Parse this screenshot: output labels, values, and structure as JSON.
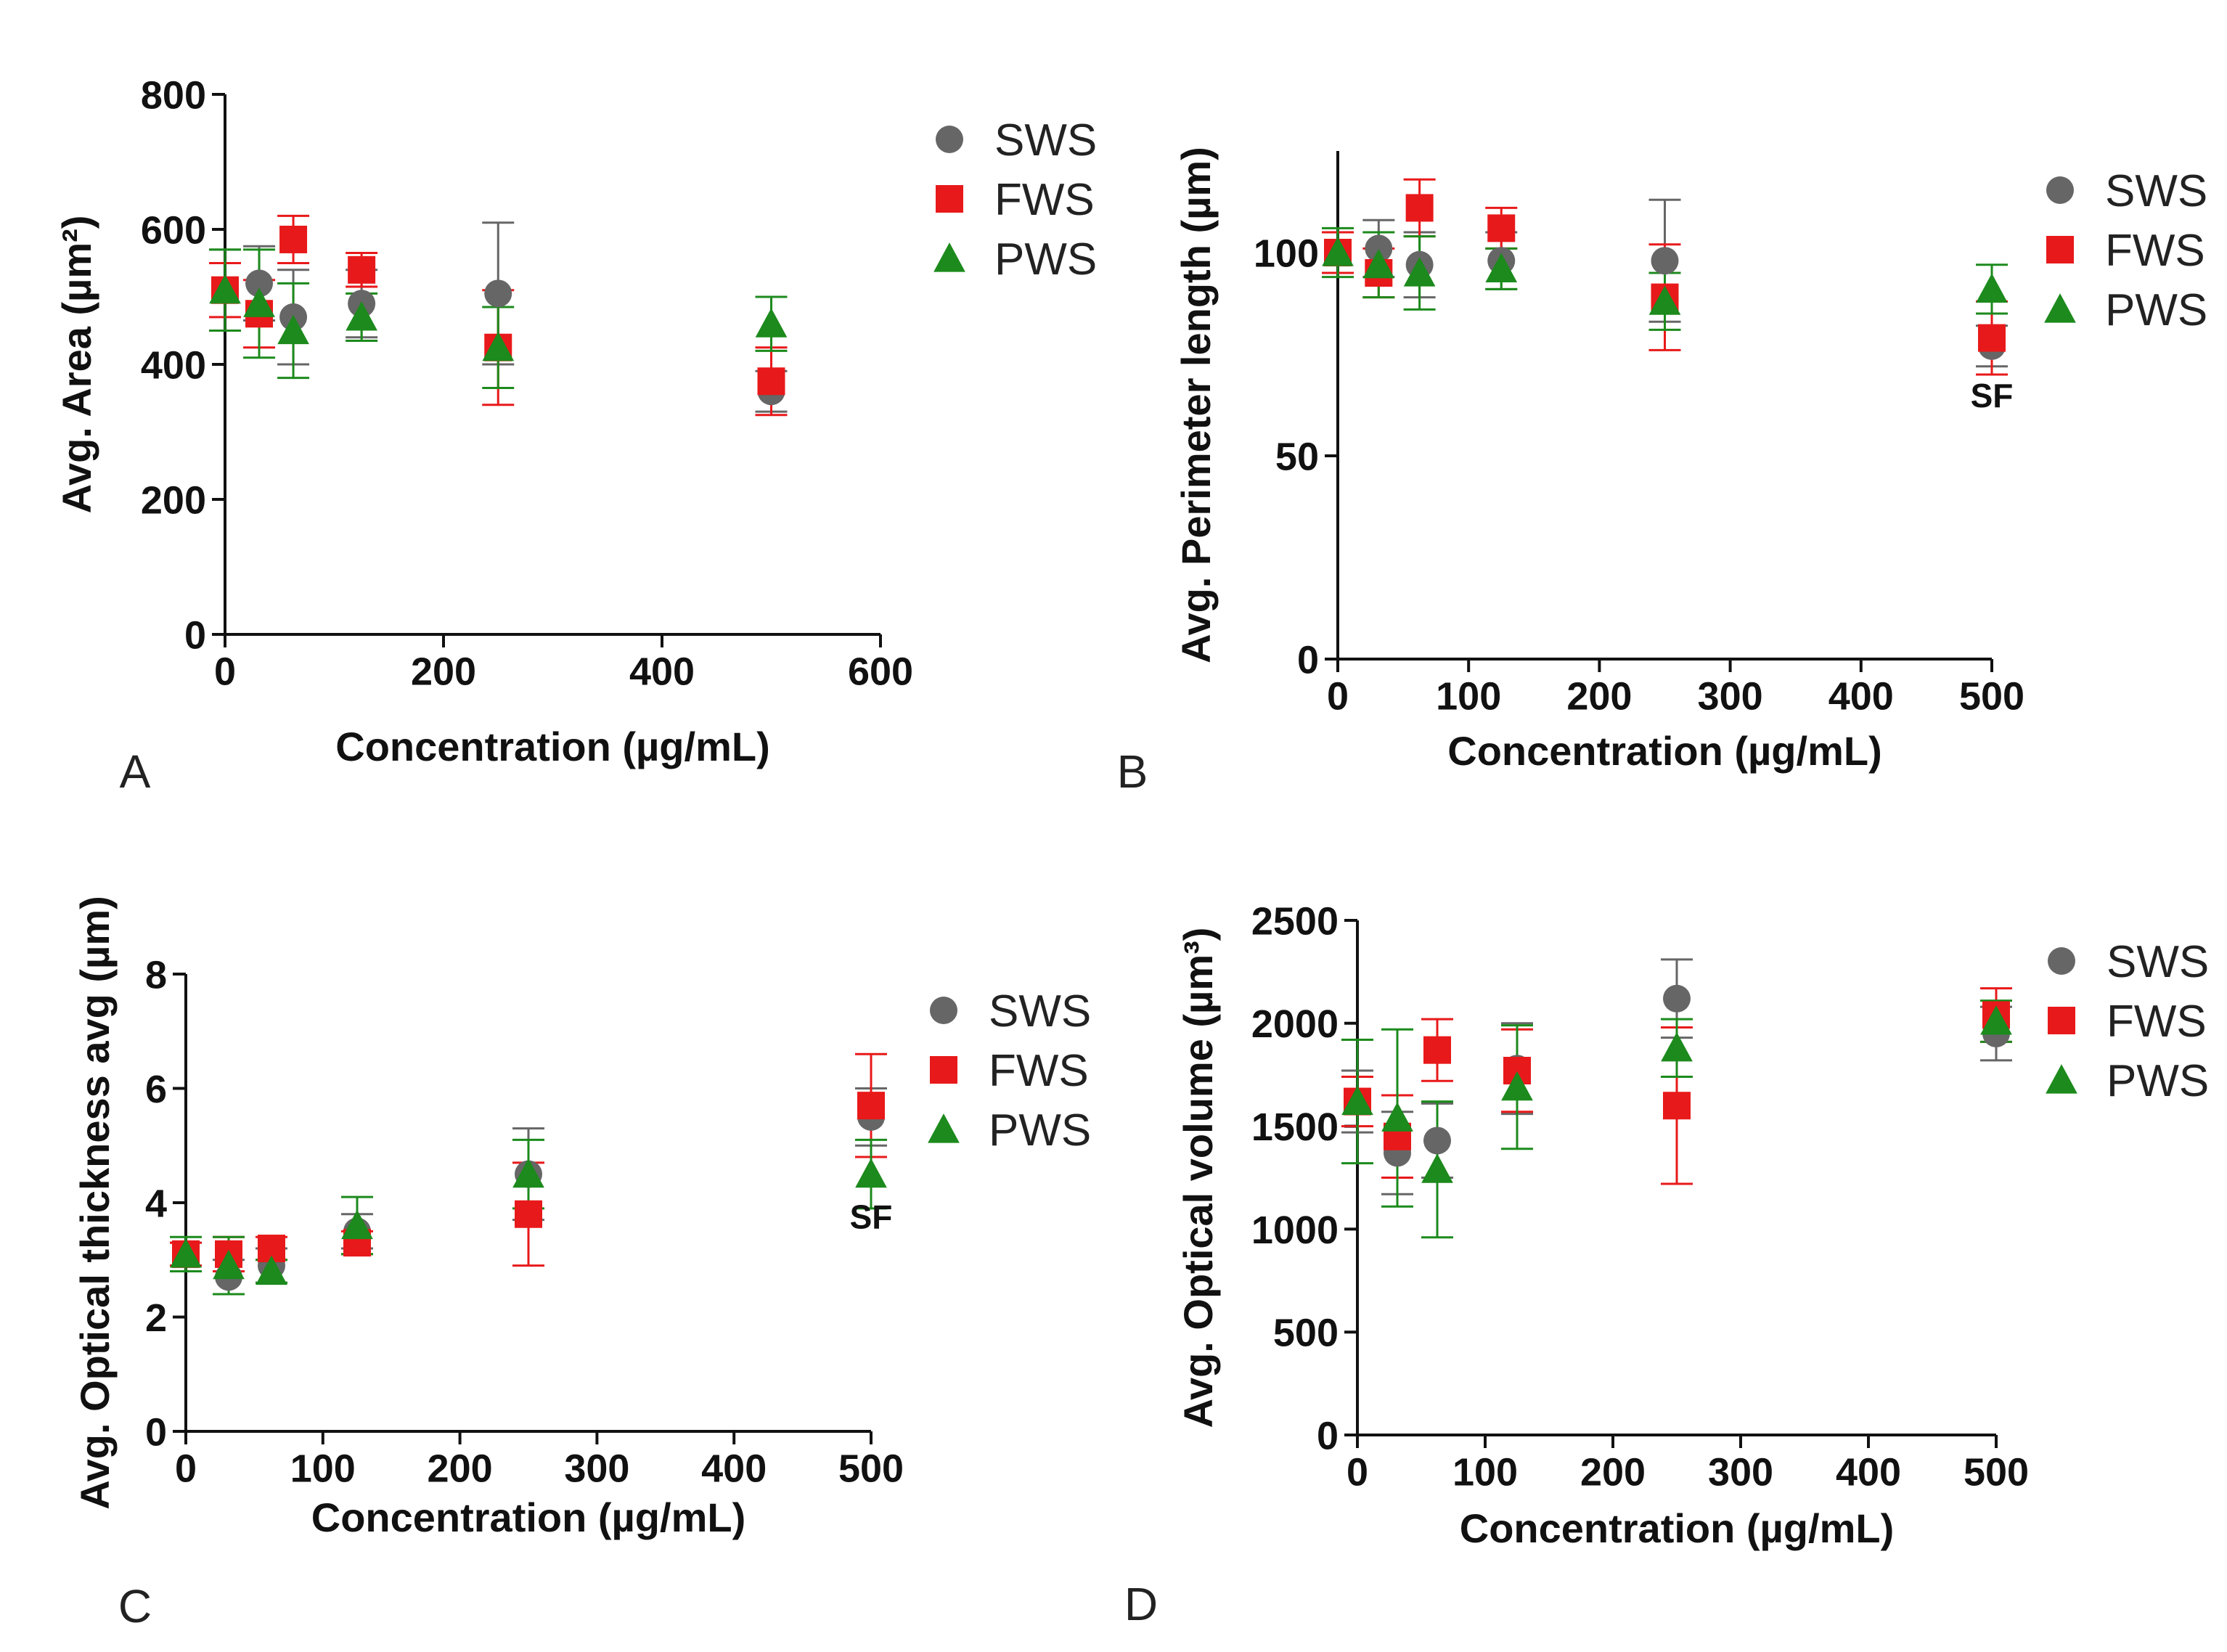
{
  "colors": {
    "SWS": "#666666",
    "FWS": "#e8191a",
    "PWS": "#1c8a1c"
  },
  "chart_data": [
    {
      "type": "scatter",
      "panel": "A",
      "xlabel": "Concentration (µg/mL)",
      "ylabel": "Avg. Area (µm²)",
      "xlim": [
        0,
        600
      ],
      "ylim": [
        0,
        800
      ],
      "xticks": [
        0,
        200,
        400,
        600
      ],
      "yticks": [
        0,
        200,
        400,
        600,
        800
      ],
      "legend": [
        "SWS",
        "FWS",
        "PWS"
      ],
      "annotations": [],
      "series": [
        {
          "name": "SWS",
          "marker": "circle",
          "x": [
            0,
            31.25,
            62.5,
            125,
            250,
            500
          ],
          "y": [
            510,
            520,
            470,
            490,
            505,
            360
          ],
          "err": [
            60,
            55,
            70,
            50,
            105,
            30
          ]
        },
        {
          "name": "FWS",
          "marker": "square",
          "x": [
            0,
            31.25,
            62.5,
            125,
            250,
            500
          ],
          "y": [
            510,
            475,
            585,
            540,
            425,
            375
          ],
          "err": [
            40,
            50,
            35,
            25,
            85,
            50
          ]
        },
        {
          "name": "PWS",
          "marker": "triangle",
          "x": [
            0,
            31.25,
            62.5,
            125,
            250,
            500
          ],
          "y": [
            510,
            490,
            450,
            470,
            425,
            460
          ],
          "err": [
            60,
            80,
            70,
            35,
            60,
            40
          ]
        }
      ]
    },
    {
      "type": "scatter",
      "panel": "B",
      "xlabel": "Concentration (µg/mL)",
      "ylabel": "Avg. Perimeter length (µm)",
      "xlim": [
        0,
        500
      ],
      "ylim": [
        0,
        125
      ],
      "xticks": [
        0,
        100,
        200,
        300,
        400,
        500
      ],
      "yticks": [
        0,
        50,
        100
      ],
      "legend": [
        "SWS",
        "FWS",
        "PWS"
      ],
      "annotations": [
        {
          "text": "SF",
          "x": 500,
          "y": 62
        }
      ],
      "series": [
        {
          "name": "SWS",
          "marker": "circle",
          "x": [
            0,
            31.25,
            62.5,
            125,
            250,
            500
          ],
          "y": [
            100,
            101,
            97,
            98,
            98,
            77
          ],
          "err": [
            5,
            7,
            8,
            7,
            15,
            5
          ]
        },
        {
          "name": "FWS",
          "marker": "square",
          "x": [
            0,
            31.25,
            62.5,
            125,
            250,
            500
          ],
          "y": [
            100,
            95,
            111,
            106,
            89,
            79
          ],
          "err": [
            5,
            6,
            7,
            5,
            13,
            9
          ]
        },
        {
          "name": "PWS",
          "marker": "triangle",
          "x": [
            0,
            31.25,
            62.5,
            125,
            250,
            500
          ],
          "y": [
            100,
            97,
            95,
            96,
            88,
            91
          ],
          "err": [
            6,
            8,
            9,
            5,
            7,
            6
          ]
        }
      ]
    },
    {
      "type": "scatter",
      "panel": "C",
      "xlabel": "Concentration (µg/mL)",
      "ylabel": "Avg. Optical thickness avg (µm)",
      "xlim": [
        0,
        500
      ],
      "ylim": [
        0,
        8
      ],
      "xticks": [
        0,
        100,
        200,
        300,
        400,
        500
      ],
      "yticks": [
        0,
        2,
        4,
        6,
        8
      ],
      "legend": [
        "SWS",
        "FWS",
        "PWS"
      ],
      "annotations": [
        {
          "text": "SF",
          "x": 500,
          "y": 3.55
        }
      ],
      "series": [
        {
          "name": "SWS",
          "marker": "circle",
          "x": [
            0,
            31.25,
            62.5,
            125,
            250,
            500
          ],
          "y": [
            3.1,
            2.7,
            2.9,
            3.5,
            4.5,
            5.5
          ],
          "err": [
            0.2,
            0.3,
            0.3,
            0.3,
            0.8,
            0.5
          ]
        },
        {
          "name": "FWS",
          "marker": "square",
          "x": [
            0,
            31.25,
            62.5,
            125,
            250,
            500
          ],
          "y": [
            3.1,
            3.1,
            3.2,
            3.3,
            3.8,
            5.7
          ],
          "err": [
            0.2,
            0.3,
            0.2,
            0.2,
            0.9,
            0.9
          ]
        },
        {
          "name": "PWS",
          "marker": "triangle",
          "x": [
            0,
            31.25,
            62.5,
            125,
            250,
            500
          ],
          "y": [
            3.1,
            2.9,
            2.8,
            3.6,
            4.5,
            4.5
          ],
          "err": [
            0.3,
            0.5,
            0.2,
            0.5,
            0.6,
            0.6
          ]
        }
      ]
    },
    {
      "type": "scatter",
      "panel": "D",
      "xlabel": "Concentration (µg/mL)",
      "ylabel": "Avg. Optical volume (µm³)",
      "xlim": [
        0,
        500
      ],
      "ylim": [
        0,
        2500
      ],
      "xticks": [
        0,
        100,
        200,
        300,
        400,
        500
      ],
      "yticks": [
        0,
        500,
        1000,
        1500,
        2000,
        2500
      ],
      "legend": [
        "SWS",
        "FWS",
        "PWS"
      ],
      "annotations": [],
      "series": [
        {
          "name": "SWS",
          "marker": "circle",
          "x": [
            0,
            31.25,
            62.5,
            125,
            250,
            500
          ],
          "y": [
            1620,
            1370,
            1430,
            1780,
            2120,
            1950
          ],
          "err": [
            150,
            200,
            180,
            220,
            190,
            130
          ]
        },
        {
          "name": "FWS",
          "marker": "square",
          "x": [
            0,
            31.25,
            62.5,
            125,
            250,
            500
          ],
          "y": [
            1620,
            1450,
            1870,
            1770,
            1600,
            2040
          ],
          "err": [
            120,
            200,
            150,
            200,
            380,
            130
          ]
        },
        {
          "name": "PWS",
          "marker": "triangle",
          "x": [
            0,
            31.25,
            62.5,
            125,
            250,
            500
          ],
          "y": [
            1620,
            1540,
            1290,
            1690,
            1880,
            2010
          ],
          "err": [
            300,
            430,
            330,
            300,
            140,
            100
          ]
        }
      ]
    }
  ]
}
